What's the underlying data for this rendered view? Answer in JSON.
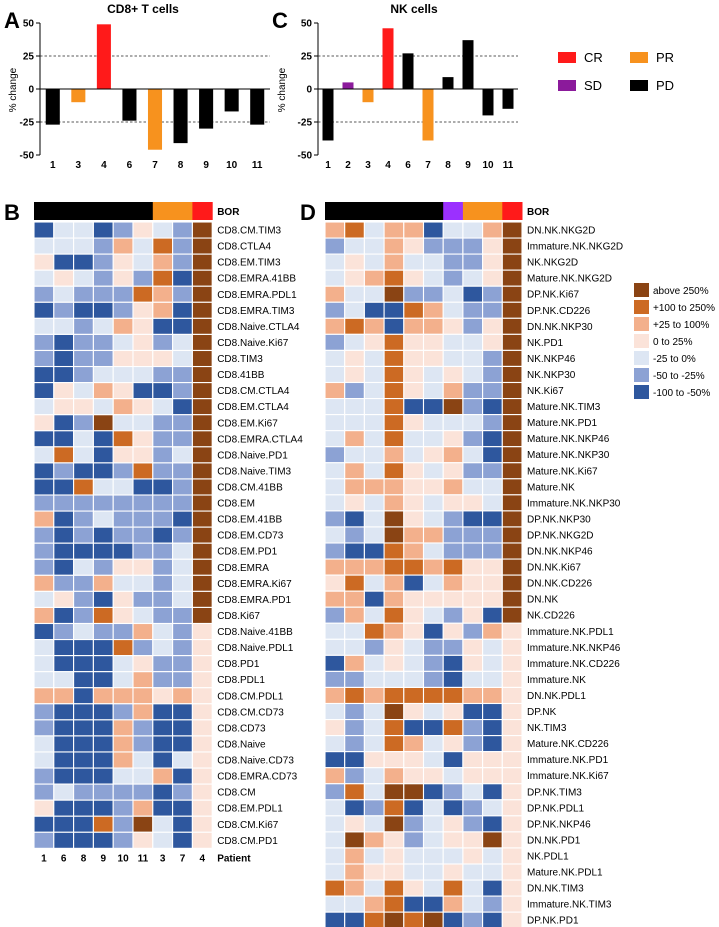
{
  "chart_data": [
    {
      "panel": "A",
      "type": "bar",
      "title": "CD8+ T cells",
      "ylabel": "% change",
      "ylim": [
        -50,
        50
      ],
      "yticks": [
        -50,
        -25,
        0,
        25,
        50
      ],
      "reference_lines": [
        25,
        -25
      ],
      "categories": [
        "1",
        "3",
        "4",
        "6",
        "7",
        "8",
        "9",
        "10",
        "11"
      ],
      "values": [
        -27,
        -10,
        49,
        -24,
        -46,
        -41,
        -30,
        -17,
        -27
      ],
      "response": [
        "PD",
        "PR",
        "CR",
        "PD",
        "PR",
        "PD",
        "PD",
        "PD",
        "PD"
      ]
    },
    {
      "panel": "C",
      "type": "bar",
      "title": "NK cells",
      "ylabel": "% change",
      "ylim": [
        -50,
        50
      ],
      "yticks": [
        -50,
        -25,
        0,
        25,
        50
      ],
      "reference_lines": [
        25,
        -25
      ],
      "categories": [
        "1",
        "2",
        "3",
        "4",
        "6",
        "7",
        "8",
        "9",
        "10",
        "11"
      ],
      "values": [
        -39,
        5,
        -10,
        46,
        27,
        -39,
        9,
        37,
        -20,
        -15
      ],
      "response": [
        "PD",
        "SD",
        "PR",
        "CR",
        "PD",
        "PR",
        "PD",
        "PD",
        "PD",
        "PD"
      ]
    },
    {
      "panel": "B",
      "type": "heatmap",
      "bor_label": "BOR",
      "xlabel": "Patient",
      "columns": [
        "1",
        "6",
        "8",
        "9",
        "10",
        "11",
        "3",
        "7",
        "4"
      ],
      "bor": [
        "PD",
        "PD",
        "PD",
        "PD",
        "PD",
        "PD",
        "PR",
        "PR",
        "CR"
      ],
      "rows": [
        "CD8.CM.TIM3",
        "CD8.CTLA4",
        "CD8.EM.TIM3",
        "CD8.EMRA.41BB",
        "CD8.EMRA.PDL1",
        "CD8.EMRA.TIM3",
        "CD8.Naive.CTLA4",
        "CD8.Naive.Ki67",
        "CD8.TIM3",
        "CD8.41BB",
        "CD8.CM.CTLA4",
        "CD8.EM.CTLA4",
        "CD8.EM.Ki67",
        "CD8.EMRA.CTLA4",
        "CD8.Naive.PD1",
        "CD8.Naive.TIM3",
        "CD8.CM.41BB",
        "CD8.EM",
        "CD8.EM.41BB",
        "CD8.EM.CD73",
        "CD8.EM.PD1",
        "CD8.EMRA",
        "CD8.EMRA.Ki67",
        "CD8.EMRA.PD1",
        "CD8.Ki67",
        "CD8.Naive.41BB",
        "CD8.Naive.PDL1",
        "CD8.PD1",
        "CD8.PDL1",
        "CD8.CM.PDL1",
        "CD8.CM.CD73",
        "CD8.CD73",
        "CD8.Naive",
        "CD8.Naive.CD73",
        "CD8.EMRA.CD73",
        "CD8.CM",
        "CD8.EM.PDL1",
        "CD8.CM.Ki67",
        "CD8.CM.PD1"
      ],
      "values": [
        [
          0,
          2,
          2,
          0,
          1,
          3,
          2,
          1,
          6
        ],
        [
          2,
          2,
          2,
          1,
          4,
          2,
          5,
          1,
          6
        ],
        [
          3,
          0,
          0,
          1,
          3,
          2,
          4,
          1,
          6
        ],
        [
          2,
          3,
          2,
          1,
          3,
          1,
          5,
          0,
          6
        ],
        [
          1,
          2,
          1,
          1,
          1,
          5,
          4,
          1,
          6
        ],
        [
          0,
          1,
          0,
          0,
          1,
          3,
          4,
          0,
          6
        ],
        [
          2,
          2,
          1,
          2,
          4,
          3,
          0,
          0,
          6
        ],
        [
          1,
          0,
          1,
          1,
          2,
          3,
          1,
          2,
          6
        ],
        [
          1,
          0,
          1,
          1,
          3,
          3,
          3,
          2,
          6
        ],
        [
          0,
          0,
          1,
          2,
          2,
          2,
          1,
          1,
          6
        ],
        [
          0,
          3,
          2,
          4,
          3,
          0,
          0,
          1,
          6
        ],
        [
          2,
          3,
          3,
          2,
          4,
          3,
          2,
          0,
          6
        ],
        [
          3,
          0,
          1,
          6,
          2,
          2,
          1,
          1,
          6
        ],
        [
          0,
          0,
          2,
          0,
          5,
          3,
          1,
          1,
          6
        ],
        [
          2,
          5,
          2,
          0,
          3,
          3,
          1,
          2,
          6
        ],
        [
          0,
          1,
          0,
          0,
          1,
          5,
          1,
          1,
          6
        ],
        [
          0,
          0,
          5,
          2,
          2,
          0,
          0,
          1,
          6
        ],
        [
          1,
          1,
          1,
          1,
          1,
          1,
          1,
          1,
          6
        ],
        [
          4,
          0,
          1,
          2,
          1,
          1,
          1,
          0,
          6
        ],
        [
          1,
          0,
          1,
          0,
          1,
          1,
          0,
          1,
          6
        ],
        [
          1,
          0,
          0,
          0,
          0,
          1,
          1,
          2,
          6
        ],
        [
          1,
          0,
          2,
          1,
          3,
          3,
          1,
          2,
          6
        ],
        [
          4,
          1,
          1,
          4,
          2,
          2,
          1,
          2,
          6
        ],
        [
          2,
          3,
          1,
          0,
          3,
          1,
          1,
          2,
          6
        ],
        [
          4,
          0,
          1,
          5,
          3,
          2,
          1,
          1,
          6
        ],
        [
          0,
          1,
          2,
          1,
          1,
          4,
          2,
          1,
          3
        ],
        [
          2,
          0,
          0,
          0,
          5,
          1,
          2,
          1,
          3
        ],
        [
          2,
          0,
          0,
          0,
          2,
          3,
          1,
          1,
          3
        ],
        [
          2,
          2,
          0,
          0,
          2,
          4,
          1,
          1,
          3
        ],
        [
          4,
          4,
          0,
          4,
          4,
          4,
          3,
          4,
          3
        ],
        [
          1,
          0,
          0,
          0,
          1,
          4,
          0,
          0,
          3
        ],
        [
          1,
          0,
          0,
          0,
          4,
          1,
          0,
          0,
          3
        ],
        [
          2,
          0,
          0,
          0,
          4,
          1,
          0,
          0,
          3
        ],
        [
          2,
          0,
          0,
          0,
          4,
          2,
          0,
          2,
          3
        ],
        [
          1,
          0,
          0,
          0,
          2,
          2,
          4,
          0,
          3
        ],
        [
          1,
          2,
          1,
          1,
          1,
          1,
          0,
          1,
          3
        ],
        [
          3,
          0,
          0,
          0,
          1,
          4,
          0,
          0,
          3
        ],
        [
          0,
          0,
          0,
          5,
          1,
          6,
          2,
          0,
          3
        ],
        [
          1,
          0,
          0,
          0,
          1,
          3,
          2,
          0,
          3
        ]
      ]
    },
    {
      "panel": "D",
      "type": "heatmap",
      "bor_label": "BOR",
      "xlabel": "Patient",
      "columns": [
        "1",
        "6",
        "8",
        "9",
        "10",
        "11",
        "2",
        "3",
        "7",
        "4"
      ],
      "bor": [
        "PD",
        "PD",
        "PD",
        "PD",
        "PD",
        "PD",
        "SD",
        "PR",
        "PR",
        "CR"
      ],
      "rows": [
        "DN.NK.NKG2D",
        "Immature.NK.NKG2D",
        "NK.NKG2D",
        "Mature.NK.NKG2D",
        "DP.NK.Ki67",
        "DP.NK.CD226",
        "DN.NK.NKP30",
        "NK.PD1",
        "NK.NKP46",
        "NK.NKP30",
        "NK.Ki67",
        "Mature.NK.TIM3",
        "Mature.NK.PD1",
        "Mature.NK.NKP46",
        "Mature.NK.NKP30",
        "Mature.NK.Ki67",
        "Mature.NK",
        "Immature.NK.NKP30",
        "DP.NK.NKP30",
        "DP.NK.NKG2D",
        "DN.NK.NKP46",
        "DN.NK.Ki67",
        "DN.NK.CD226",
        "DN.NK",
        "NK.CD226",
        "Immature.NK.PDL1",
        "Immature.NK.NKP46",
        "Immature.NK.CD226",
        "Immature.NK",
        "DN.NK.PDL1",
        "DP.NK",
        "NK.TIM3",
        "Mature.NK.CD226",
        "Immature.NK.PD1",
        "Immature.NK.Ki67",
        "DP.NK.TIM3",
        "DP.NK.PDL1",
        "DP.NK.NKP46",
        "DN.NK.PD1",
        "NK.PDL1",
        "Mature.NK.PDL1",
        "DN.NK.TIM3",
        "Immature.NK.TIM3",
        "DP.NK.PD1"
      ],
      "values": [
        [
          4,
          5,
          2,
          4,
          4,
          0,
          2,
          2,
          4,
          6
        ],
        [
          1,
          2,
          2,
          4,
          3,
          1,
          1,
          1,
          3,
          6
        ],
        [
          2,
          3,
          2,
          4,
          2,
          2,
          1,
          1,
          3,
          6
        ],
        [
          2,
          3,
          4,
          5,
          3,
          2,
          1,
          2,
          3,
          6
        ],
        [
          4,
          2,
          2,
          6,
          1,
          1,
          2,
          0,
          1,
          6
        ],
        [
          1,
          2,
          0,
          0,
          5,
          4,
          2,
          1,
          1,
          6
        ],
        [
          4,
          5,
          4,
          0,
          4,
          4,
          3,
          1,
          3,
          6
        ],
        [
          1,
          2,
          3,
          5,
          3,
          3,
          2,
          2,
          3,
          6
        ],
        [
          2,
          3,
          2,
          5,
          3,
          3,
          2,
          2,
          1,
          6
        ],
        [
          2,
          3,
          2,
          5,
          3,
          2,
          3,
          2,
          1,
          6
        ],
        [
          4,
          1,
          2,
          5,
          3,
          2,
          4,
          1,
          1,
          6
        ],
        [
          2,
          2,
          2,
          5,
          0,
          0,
          6,
          1,
          0,
          6
        ],
        [
          2,
          2,
          2,
          5,
          3,
          2,
          2,
          2,
          1,
          6
        ],
        [
          2,
          4,
          2,
          5,
          2,
          2,
          3,
          1,
          0,
          6
        ],
        [
          1,
          2,
          2,
          4,
          2,
          3,
          4,
          2,
          0,
          6
        ],
        [
          2,
          4,
          2,
          5,
          3,
          2,
          3,
          1,
          1,
          6
        ],
        [
          2,
          4,
          4,
          4,
          3,
          3,
          4,
          2,
          2,
          6
        ],
        [
          2,
          3,
          2,
          4,
          3,
          2,
          3,
          3,
          2,
          6
        ],
        [
          1,
          0,
          2,
          6,
          3,
          2,
          1,
          0,
          0,
          6
        ],
        [
          2,
          1,
          2,
          6,
          4,
          4,
          1,
          1,
          1,
          6
        ],
        [
          1,
          0,
          0,
          5,
          4,
          2,
          1,
          1,
          1,
          6
        ],
        [
          4,
          4,
          4,
          5,
          5,
          4,
          5,
          3,
          3,
          6
        ],
        [
          3,
          5,
          2,
          4,
          0,
          2,
          4,
          3,
          3,
          6
        ],
        [
          4,
          4,
          0,
          4,
          3,
          3,
          3,
          3,
          3,
          6
        ],
        [
          1,
          4,
          2,
          5,
          3,
          2,
          1,
          3,
          0,
          6
        ],
        [
          2,
          2,
          5,
          4,
          3,
          0,
          3,
          1,
          4,
          3
        ],
        [
          2,
          2,
          1,
          3,
          2,
          1,
          1,
          3,
          2,
          3
        ],
        [
          0,
          4,
          2,
          3,
          2,
          1,
          0,
          3,
          2,
          3
        ],
        [
          1,
          1,
          2,
          2,
          2,
          1,
          0,
          2,
          2,
          3
        ],
        [
          4,
          5,
          4,
          5,
          5,
          5,
          5,
          4,
          4,
          3
        ],
        [
          2,
          1,
          2,
          6,
          3,
          2,
          3,
          0,
          0,
          3
        ],
        [
          3,
          1,
          2,
          5,
          0,
          0,
          5,
          1,
          0,
          3
        ],
        [
          2,
          1,
          2,
          5,
          4,
          2,
          3,
          1,
          0,
          3
        ],
        [
          0,
          0,
          3,
          3,
          3,
          2,
          0,
          3,
          3,
          3
        ],
        [
          4,
          1,
          2,
          4,
          3,
          3,
          2,
          3,
          3,
          3
        ],
        [
          1,
          5,
          2,
          6,
          6,
          0,
          1,
          2,
          0,
          3
        ],
        [
          2,
          0,
          1,
          5,
          0,
          2,
          0,
          1,
          2,
          3
        ],
        [
          2,
          3,
          2,
          6,
          1,
          2,
          3,
          1,
          0,
          3
        ],
        [
          2,
          6,
          4,
          3,
          1,
          2,
          3,
          3,
          6,
          3
        ],
        [
          2,
          4,
          2,
          3,
          2,
          2,
          2,
          3,
          2,
          3
        ],
        [
          2,
          4,
          3,
          3,
          2,
          2,
          3,
          2,
          2,
          3
        ],
        [
          5,
          4,
          2,
          5,
          3,
          2,
          5,
          2,
          0,
          3
        ],
        [
          2,
          2,
          4,
          5,
          0,
          0,
          4,
          2,
          1,
          3
        ],
        [
          0,
          0,
          5,
          6,
          5,
          6,
          0,
          1,
          0,
          3
        ]
      ]
    }
  ],
  "panel_letters": [
    "A",
    "B",
    "C",
    "D"
  ],
  "response_legend": [
    {
      "label": "CR",
      "color": "#ff1a1a"
    },
    {
      "label": "PR",
      "color": "#f7921e"
    },
    {
      "label": "SD",
      "color": "#8b1a9b"
    },
    {
      "label": "PD",
      "color": "#000000"
    }
  ],
  "heatmap_legend": [
    {
      "label": "above 250%",
      "color": "#8a4414"
    },
    {
      "label": "+100 to 250%",
      "color": "#cc6a23"
    },
    {
      "label": "+25 to 100%",
      "color": "#f3b08c"
    },
    {
      "label": "0 to 25%",
      "color": "#fbe3d9"
    },
    {
      "label": "-25 to 0%",
      "color": "#dde6f3"
    },
    {
      "label": "-50 to -25%",
      "color": "#8ca2d4"
    },
    {
      "label": "-100 to -50%",
      "color": "#2e579e"
    }
  ],
  "bor_colors": {
    "CR": "#ff1a1a",
    "PR": "#f7921e",
    "SD": "#9b30ff",
    "PD": "#000000"
  }
}
